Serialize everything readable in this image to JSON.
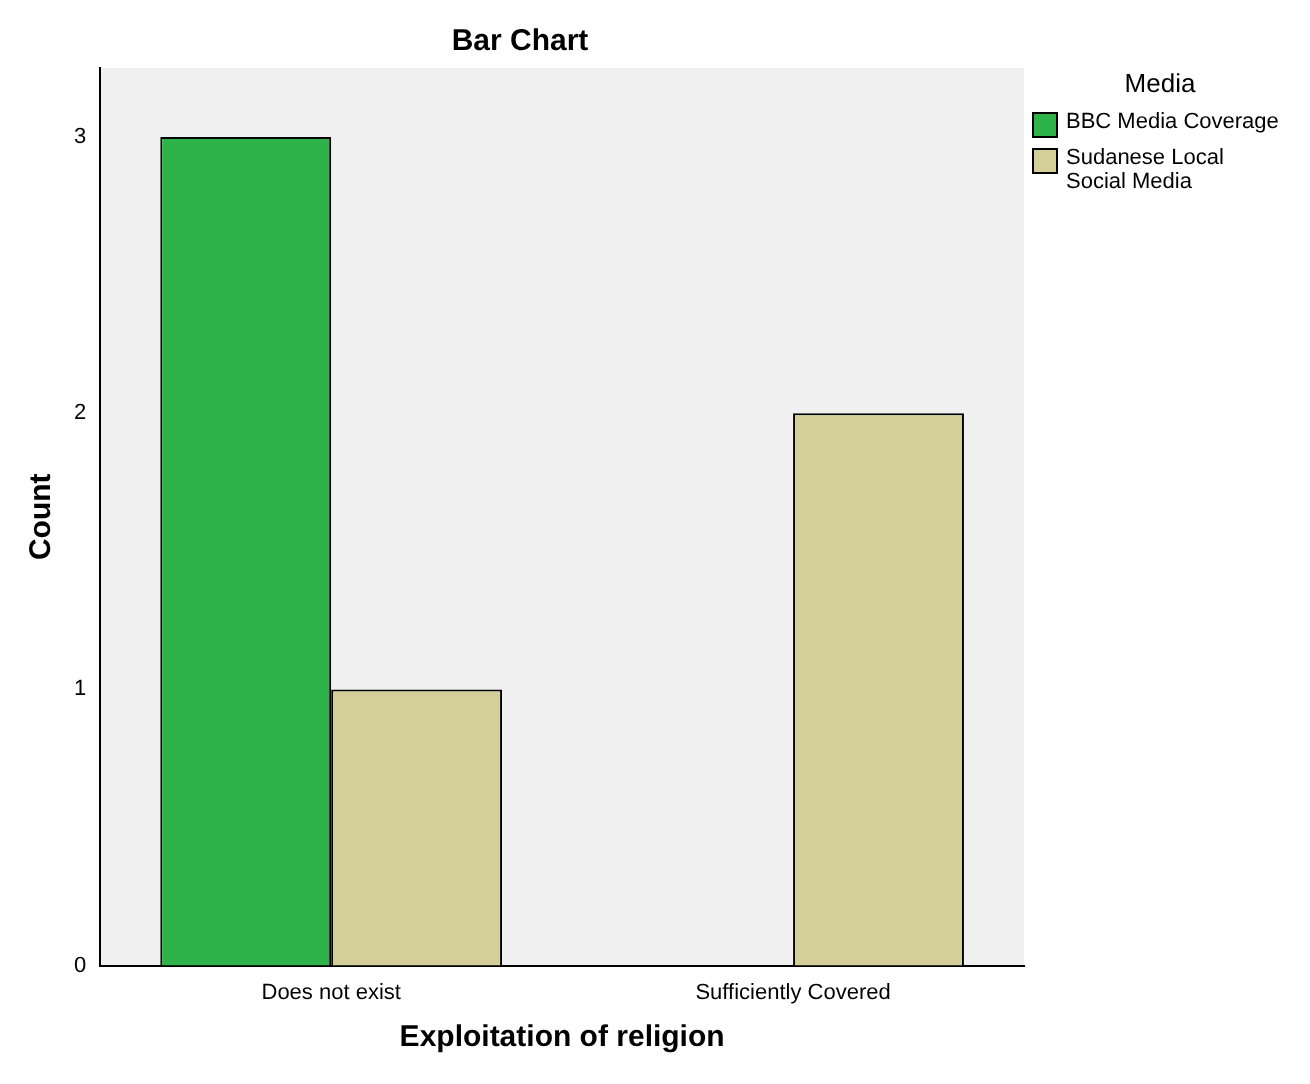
{
  "chart_data": {
    "type": "bar",
    "title": "Bar Chart",
    "xlabel": "Exploitation of religion",
    "ylabel": "Count",
    "legend_title": "Media",
    "categories": [
      "Does not exist",
      "Sufficiently Covered"
    ],
    "series": [
      {
        "name": "BBC Media Coverage",
        "color": "#2db34a",
        "values": [
          3,
          null
        ]
      },
      {
        "name": "Sudanese Local Social Media",
        "color": "#d4ce98",
        "values": [
          1,
          2
        ]
      }
    ],
    "ylim": [
      0,
      3.25
    ],
    "yticks": [
      0,
      1,
      2,
      3
    ],
    "grid": false,
    "legend": "right"
  }
}
